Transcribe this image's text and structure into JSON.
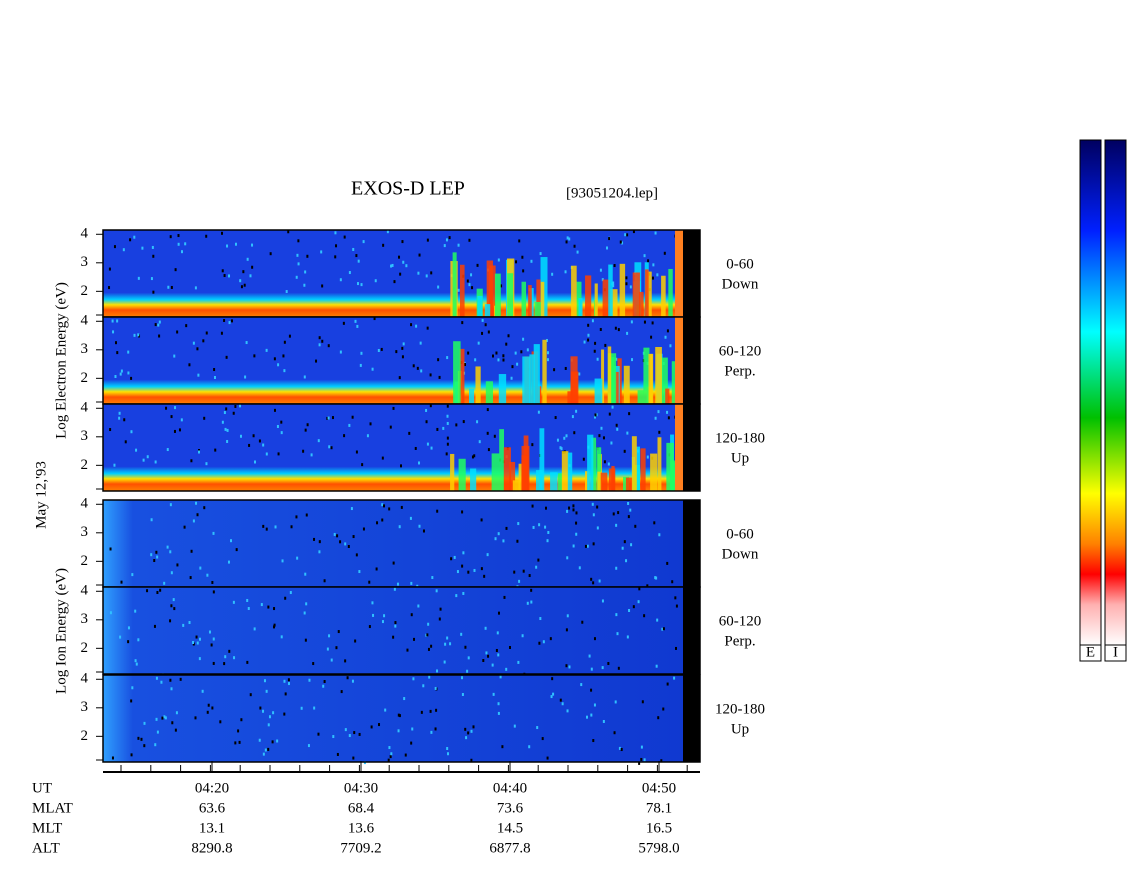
{
  "chart_data": {
    "type": "spectrogram",
    "title": "EXOS-D LEP",
    "file": "[93051204.lep]",
    "date": "May 12,'93",
    "groups": [
      {
        "label": "Log Electron Energy (eV)",
        "panels": [
          {
            "angle": "0-60",
            "direction": "Down"
          },
          {
            "angle": "60-120",
            "direction": "Perp."
          },
          {
            "angle": "120-180",
            "direction": "Up"
          }
        ]
      },
      {
        "label": "Log Ion Energy (eV)",
        "panels": [
          {
            "angle": "0-60",
            "direction": "Down"
          },
          {
            "angle": "60-120",
            "direction": "Perp."
          },
          {
            "angle": "120-180",
            "direction": "Up"
          }
        ]
      }
    ],
    "ylim": [
      1.1,
      4.15
    ],
    "yticks": [
      2,
      3,
      4
    ],
    "ephemeris": [
      {
        "label": "UT",
        "values": [
          "04:20",
          "04:30",
          "04:40",
          "04:50"
        ]
      },
      {
        "label": "MLAT",
        "values": [
          63.6,
          68.4,
          73.6,
          78.1
        ]
      },
      {
        "label": "MLT",
        "values": [
          13.1,
          13.6,
          14.5,
          16.5
        ]
      },
      {
        "label": "ALT",
        "values": [
          {
            "value": 8290.8,
            "label": "8290.8"
          },
          {
            "value": 7709.2,
            "label": "7709.2"
          },
          {
            "value": 6877.8,
            "label": "6877.8"
          },
          {
            "value": 5798.0,
            "label": "5798.0"
          }
        ]
      }
    ],
    "colorbars": [
      "E",
      "I"
    ]
  }
}
